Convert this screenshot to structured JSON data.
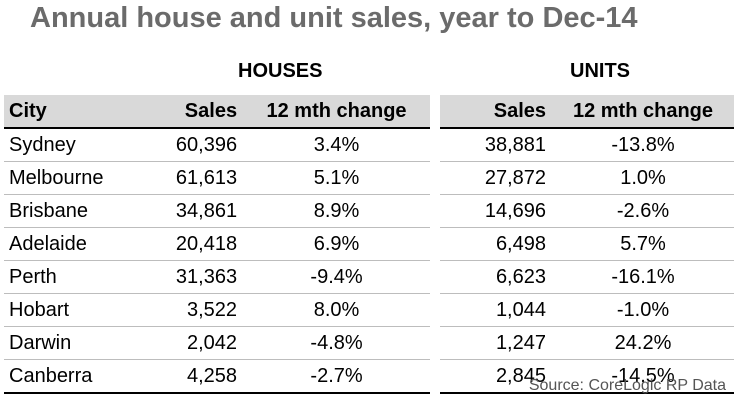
{
  "title": "Annual house and unit sales, year to Dec-14",
  "groups": {
    "houses": "HOUSES",
    "units": "UNITS"
  },
  "headers": {
    "city": "City",
    "sales": "Sales",
    "change": "12 mth change",
    "unit_sales": "Sales",
    "unit_change": "12 mth change"
  },
  "chart_data": {
    "type": "table",
    "title": "Annual house and unit sales, year to Dec-14",
    "columns": [
      "City",
      "Houses Sales",
      "Houses 12 mth change",
      "Units Sales",
      "Units 12 mth change"
    ],
    "rows": [
      {
        "city": "Sydney",
        "house_sales": "60,396",
        "house_change": "3.4%",
        "unit_sales": "38,881",
        "unit_change": "-13.8%"
      },
      {
        "city": "Melbourne",
        "house_sales": "61,613",
        "house_change": "5.1%",
        "unit_sales": "27,872",
        "unit_change": "1.0%"
      },
      {
        "city": "Brisbane",
        "house_sales": "34,861",
        "house_change": "8.9%",
        "unit_sales": "14,696",
        "unit_change": "-2.6%"
      },
      {
        "city": "Adelaide",
        "house_sales": "20,418",
        "house_change": "6.9%",
        "unit_sales": "6,498",
        "unit_change": "5.7%"
      },
      {
        "city": "Perth",
        "house_sales": "31,363",
        "house_change": "-9.4%",
        "unit_sales": "6,623",
        "unit_change": "-16.1%"
      },
      {
        "city": "Hobart",
        "house_sales": "3,522",
        "house_change": "8.0%",
        "unit_sales": "1,044",
        "unit_change": "-1.0%"
      },
      {
        "city": "Darwin",
        "house_sales": "2,042",
        "house_change": "-4.8%",
        "unit_sales": "1,247",
        "unit_change": "24.2%"
      },
      {
        "city": "Canberra",
        "house_sales": "4,258",
        "house_change": "-2.7%",
        "unit_sales": "2,845",
        "unit_change": "-14.5%"
      }
    ]
  },
  "source": "Source: CoreLogic RP Data",
  "colors": {
    "title": "#6b6b6b",
    "header_bg": "#d9d9d9",
    "source": "#555555"
  }
}
